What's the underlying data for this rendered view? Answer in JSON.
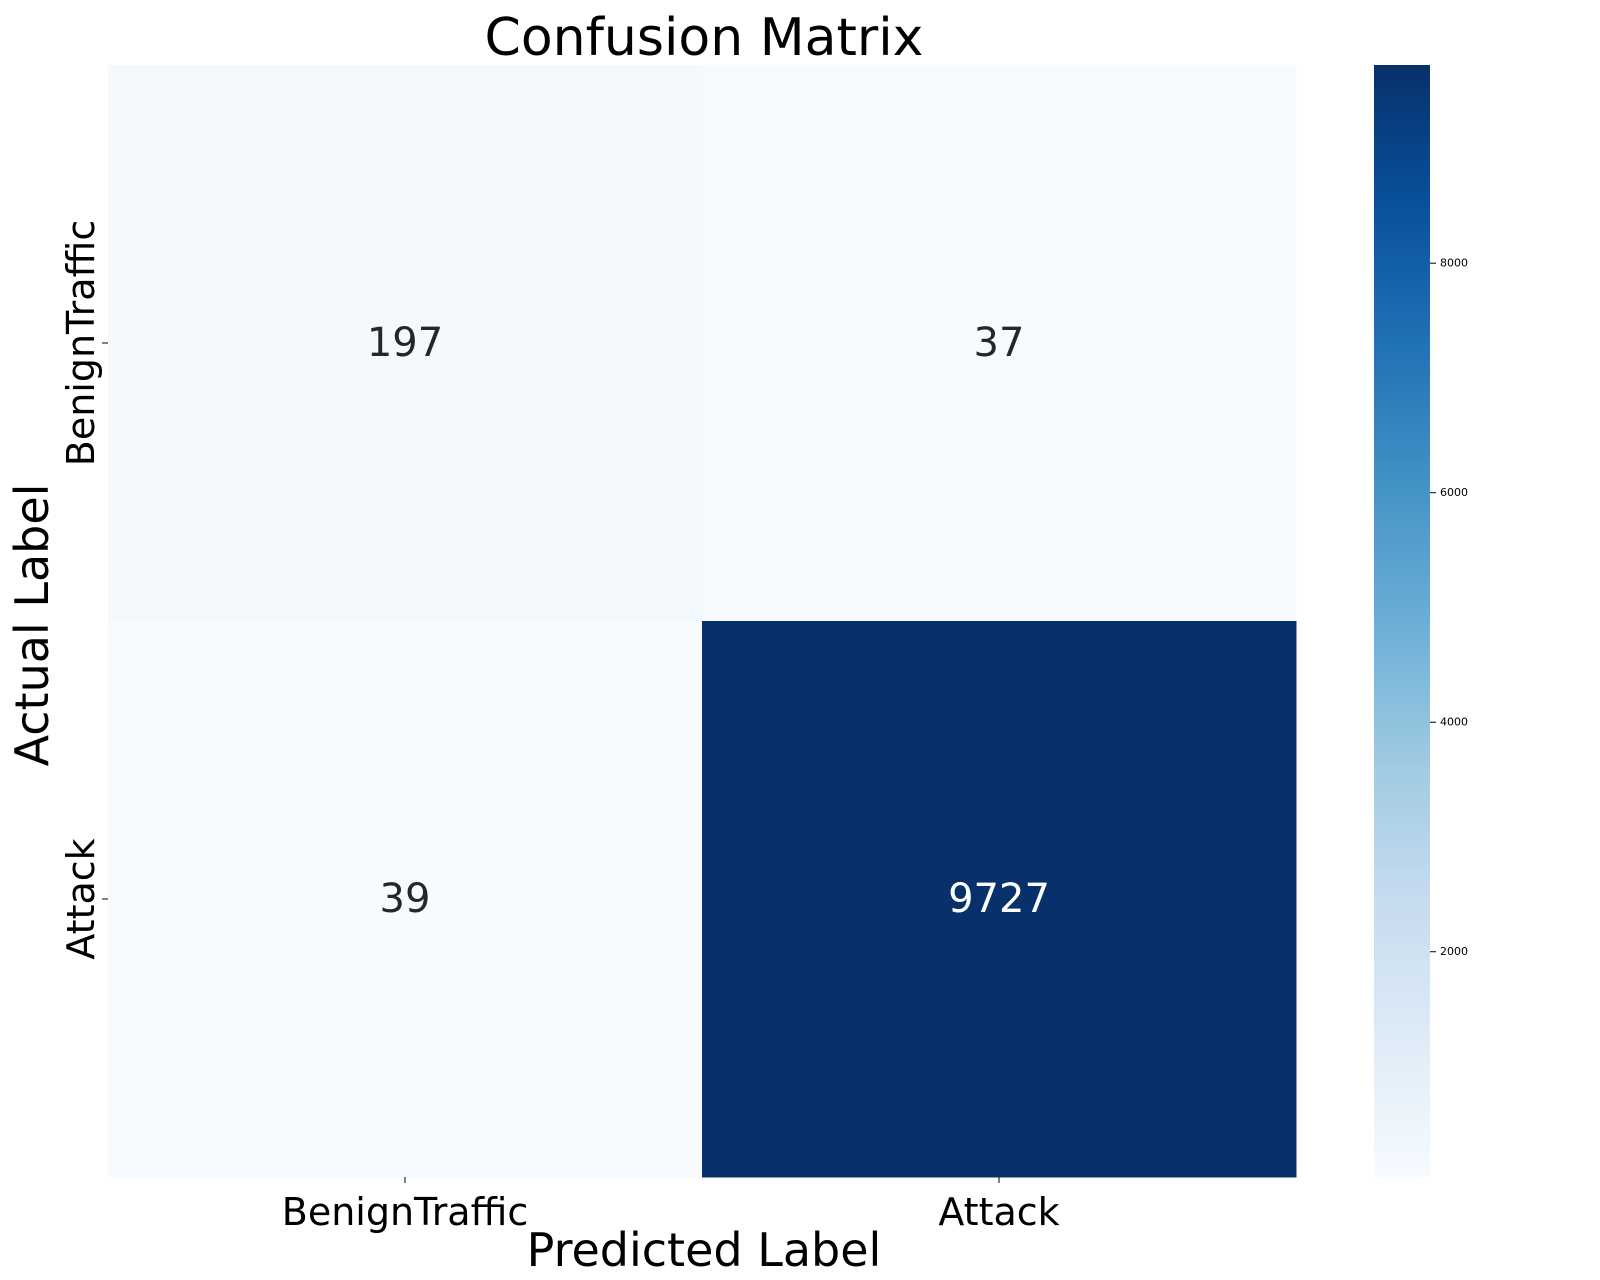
{
  "chart_data": {
    "type": "heatmap",
    "title": "Confusion Matrix",
    "xlabel": "Predicted Label",
    "ylabel": "Actual Label",
    "x_categories": [
      "BenignTraffic",
      "Attack"
    ],
    "y_categories": [
      "BenignTraffic",
      "Attack"
    ],
    "values": [
      [
        197,
        37
      ],
      [
        39,
        9727
      ]
    ],
    "colorscale": "Blues",
    "colorbar": {
      "range": [
        37,
        9727
      ],
      "ticks": [
        2000,
        4000,
        6000,
        8000
      ],
      "tick_labels": [
        "2000",
        "4000",
        "6000",
        "8000"
      ]
    },
    "grid": false
  }
}
